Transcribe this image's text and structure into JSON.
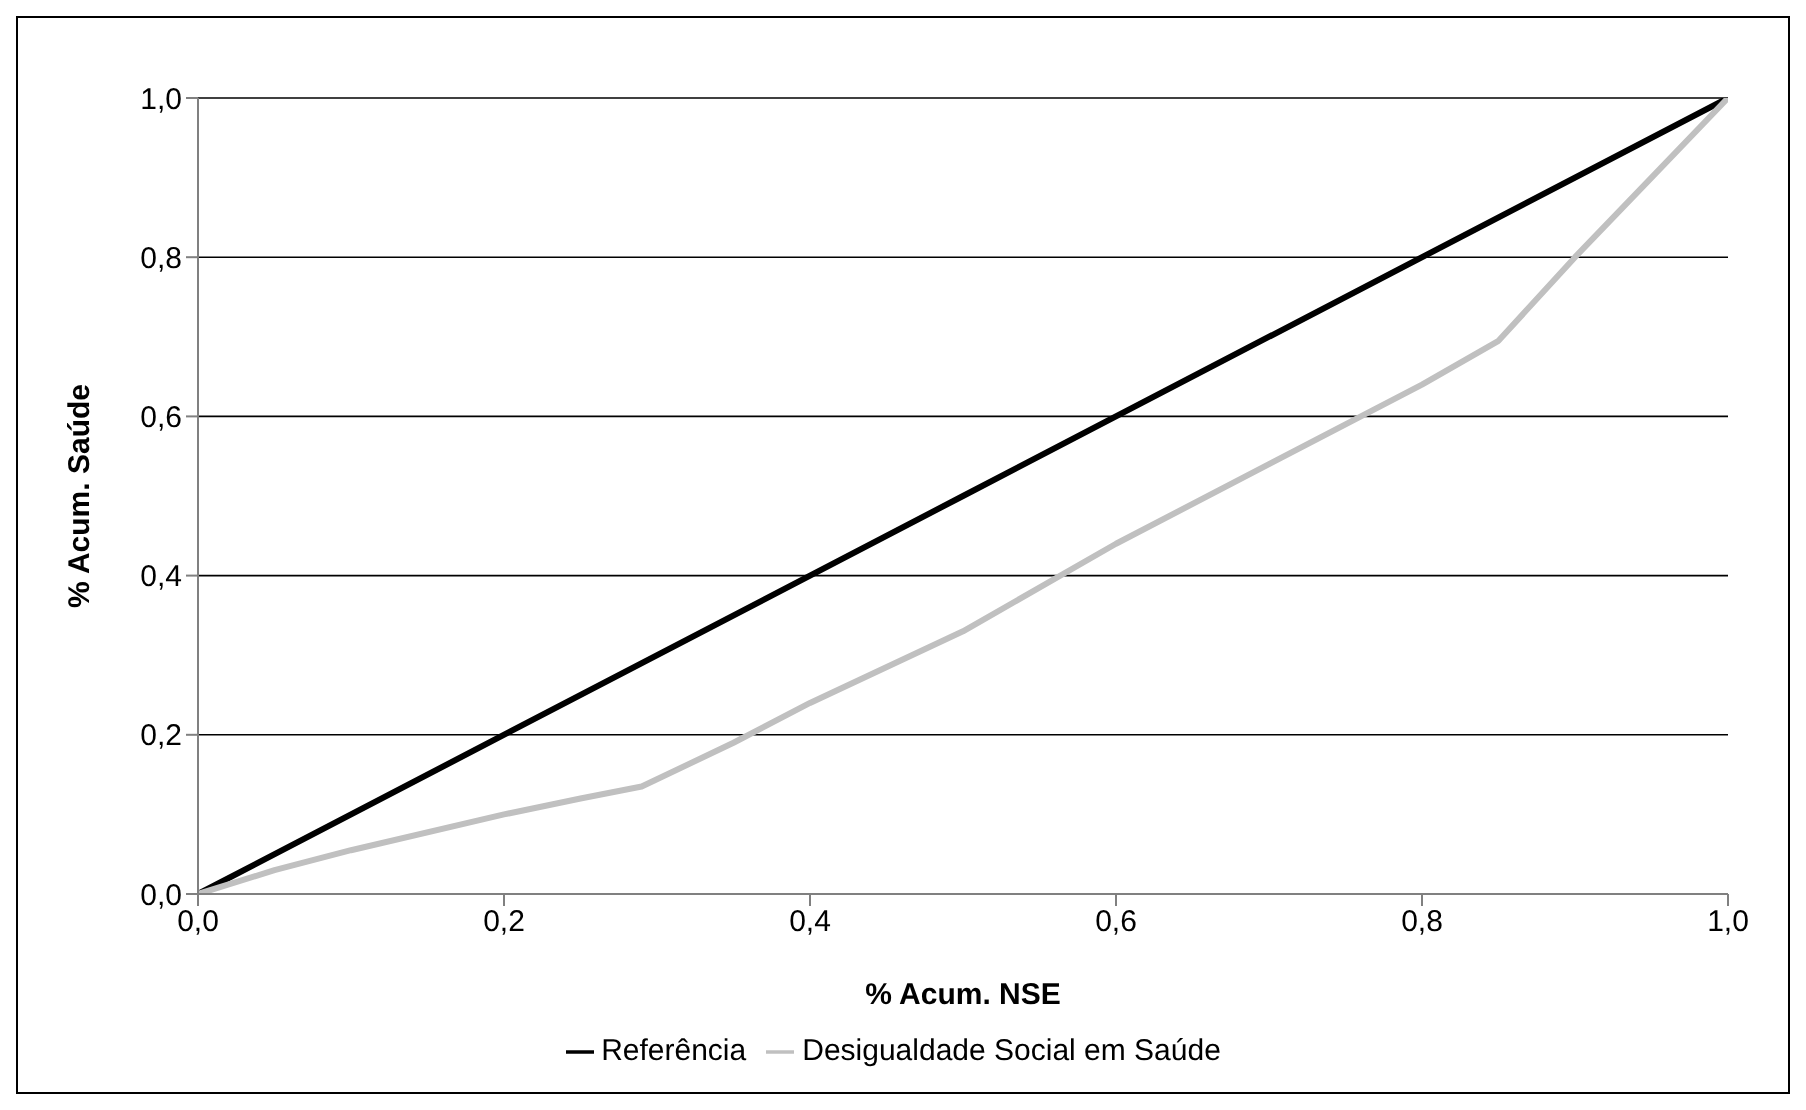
{
  "chart_data": {
    "type": "line",
    "xlabel": "% Acum. NSE",
    "ylabel": "% Acum. Saúde",
    "xlim": [
      0,
      1
    ],
    "ylim": [
      0,
      1
    ],
    "xticks": [
      {
        "value": 0,
        "label": "0,0"
      },
      {
        "value": 0.2,
        "label": "0,2"
      },
      {
        "value": 0.4,
        "label": "0,4"
      },
      {
        "value": 0.6,
        "label": "0,6"
      },
      {
        "value": 0.8,
        "label": "0,8"
      },
      {
        "value": 1,
        "label": "1,0"
      }
    ],
    "yticks": [
      {
        "value": 0,
        "label": "0,0"
      },
      {
        "value": 0.2,
        "label": "0,2"
      },
      {
        "value": 0.4,
        "label": "0,4"
      },
      {
        "value": 0.6,
        "label": "0,6"
      },
      {
        "value": 0.8,
        "label": "0,8"
      },
      {
        "value": 1,
        "label": "1,0"
      }
    ],
    "grid": "y",
    "legend": "bottom",
    "marker": "none",
    "line_style": "solid",
    "series": [
      {
        "name": "Referência",
        "color": "#000000",
        "x": [
          0,
          0.5,
          1
        ],
        "values": [
          0,
          0.5,
          1
        ]
      },
      {
        "name": "Desigualdade Social em Saúde",
        "color": "#c0c0c0",
        "x": [
          0,
          0.05,
          0.1,
          0.2,
          0.25,
          0.29,
          0.35,
          0.4,
          0.5,
          0.6,
          0.7,
          0.8,
          0.85,
          0.9,
          0.95,
          1
        ],
        "values": [
          0,
          0.03,
          0.055,
          0.1,
          0.12,
          0.135,
          0.19,
          0.24,
          0.33,
          0.44,
          0.54,
          0.64,
          0.695,
          0.8,
          0.9,
          1
        ]
      }
    ]
  }
}
